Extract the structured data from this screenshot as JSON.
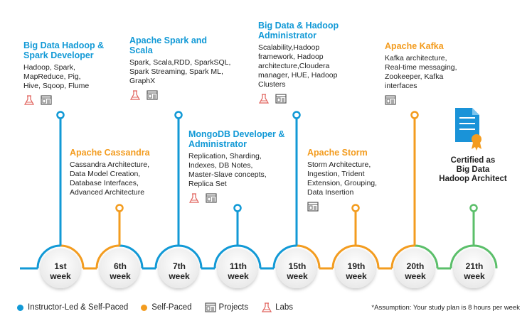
{
  "colors": {
    "blue": "#1199d6",
    "orange": "#f39c1f",
    "green": "#5bbf6a"
  },
  "milestones": [
    {
      "week": "1st\nweek",
      "title": "Big Data Hadoop &\nSpark Developer",
      "color": "blue",
      "body": "Hadoop, Spark,\nMapReduce, Pig,\nHive, Sqoop, Flume",
      "icons": [
        "labs-icon",
        "projects-icon"
      ]
    },
    {
      "week": "6th\nweek",
      "title": "Apache Cassandra",
      "color": "orange",
      "body": "Cassandra Architecture,\nData Model Creation,\nDatabase Interfaces,\nAdvanced Architecture",
      "icons": []
    },
    {
      "week": "7th\nweek",
      "title": "Apache Spark and\nScala",
      "color": "blue",
      "body": "Spark, Scala,RDD, SparkSQL,\nSpark Streaming, Spark ML,\nGraphX",
      "icons": [
        "labs-icon",
        "projects-icon"
      ]
    },
    {
      "week": "11th\nweek",
      "title": "MongoDB Developer &\nAdministrator",
      "color": "blue",
      "body": "Replication, Sharding,\nIndexes, DB Notes,\nMaster-Slave concepts,\nReplica Set",
      "icons": [
        "labs-icon",
        "projects-icon"
      ]
    },
    {
      "week": "15th\nweek",
      "title": "Big Data & Hadoop\nAdministrator",
      "color": "blue",
      "body": "Scalability,Hadoop\nframework, Hadoop\narchitecture,Cloudera\nmanager, HUE, Hadoop\nClusters",
      "icons": [
        "labs-icon",
        "projects-icon"
      ]
    },
    {
      "week": "19th\nweek",
      "title": "Apache Storm",
      "color": "orange",
      "body": "Storm Architecture,\nIngestion, Trident\nExtension, Grouping,\nData Insertion",
      "icons": [
        "projects-icon"
      ]
    },
    {
      "week": "20th\nweek",
      "title": "Apache Kafka",
      "color": "orange",
      "body": "Kafka architecture,\nReal-time messaging,\nZookeeper, Kafka\ninterfaces",
      "icons": [
        "projects-icon"
      ]
    },
    {
      "week": "21th\nweek",
      "title": "",
      "color": "green",
      "body": "",
      "icons": []
    }
  ],
  "certificate": {
    "label": "Certified as\nBig Data\nHadoop Architect"
  },
  "legend": {
    "instructor": "Instructor-Led & Self-Paced",
    "self": "Self-Paced",
    "projects": "Projects",
    "labs": "Labs",
    "note": "*Assumption: Your study plan is 8 hours per week"
  }
}
